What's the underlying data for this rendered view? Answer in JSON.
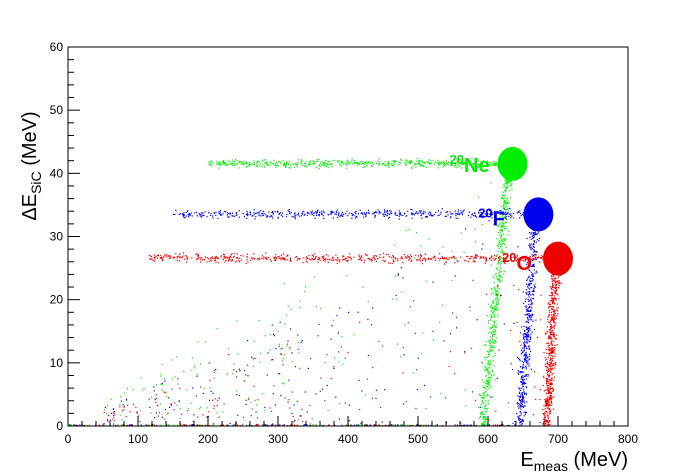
{
  "chart_data": {
    "type": "scatter",
    "title": "",
    "xlabel": {
      "main": "E",
      "sub": "meas",
      "unit": " (MeV)"
    },
    "ylabel": {
      "main": "ΔE",
      "sub": "SiC",
      "unit": " (MeV)"
    },
    "xlim": [
      0,
      800
    ],
    "ylim": [
      0,
      60
    ],
    "x_ticks": [
      0,
      100,
      200,
      300,
      400,
      500,
      600,
      700,
      800
    ],
    "y_ticks": [
      0,
      10,
      20,
      30,
      40,
      50,
      60
    ],
    "grid": false,
    "legend": "none",
    "series": [
      {
        "name": "Ne",
        "mass": "20",
        "color": "#00ee00",
        "label_at": [
          545,
          41.5
        ],
        "blob": {
          "x": 635,
          "y": 41.5
        },
        "band": {
          "x": [
            200,
            620
          ],
          "y": 41.5
        },
        "tail": {
          "x_bottom": 592,
          "x_top": 630
        },
        "n_points": 1400
      },
      {
        "name": "F",
        "mass": "20",
        "color": "#0000ee",
        "label_at": [
          586,
          33
        ],
        "blob": {
          "x": 672,
          "y": 33.5
        },
        "band": {
          "x": [
            150,
            665
          ],
          "y": 33.5
        },
        "tail": {
          "x_bottom": 645,
          "x_top": 668
        },
        "n_points": 1300
      },
      {
        "name": "O",
        "mass": "20",
        "color": "#ee0000",
        "label_at": [
          620,
          26
        ],
        "blob": {
          "x": 700,
          "y": 26.5
        },
        "band": {
          "x": [
            115,
            690
          ],
          "y": 26.5
        },
        "tail": {
          "x_bottom": 683,
          "x_top": 697
        },
        "n_points": 1500
      }
    ]
  }
}
